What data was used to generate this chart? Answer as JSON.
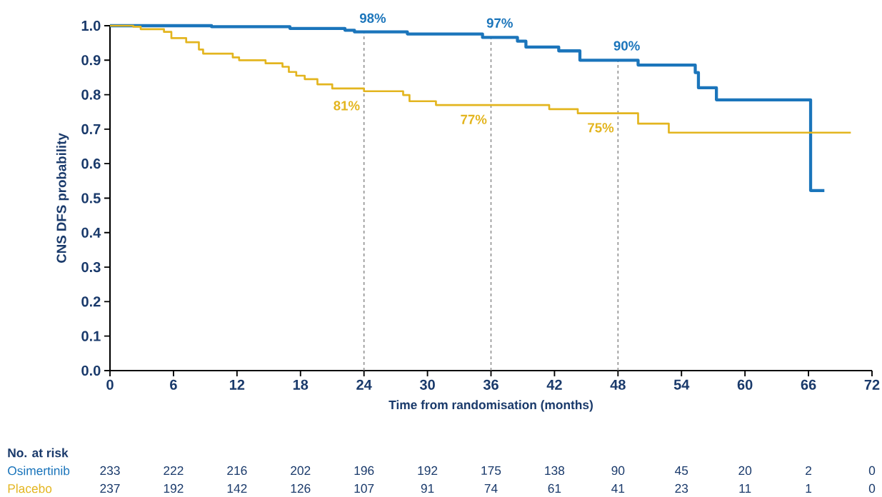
{
  "chart_data": {
    "type": "step",
    "ylabel": "CNS DFS probability",
    "xlabel": "Time from randomisation (months)",
    "xlim": [
      0,
      72
    ],
    "ylim": [
      0,
      1
    ],
    "xticks": [
      0,
      6,
      12,
      18,
      24,
      30,
      36,
      42,
      48,
      54,
      60,
      66,
      72
    ],
    "yticks": [
      {
        "value": 0,
        "label": "0.0"
      },
      {
        "value": 0.1,
        "label": "0.1"
      },
      {
        "value": 0.2,
        "label": "0.2"
      },
      {
        "value": 0.3,
        "label": "0.3"
      },
      {
        "value": 0.4,
        "label": "0.4"
      },
      {
        "value": 0.5,
        "label": "0.5"
      },
      {
        "value": 0.6,
        "label": "0.6"
      },
      {
        "value": 0.7,
        "label": "0.7"
      },
      {
        "value": 0.8,
        "label": "0.8"
      },
      {
        "value": 0.9,
        "label": "0.9"
      },
      {
        "value": 1,
        "label": "1.0"
      }
    ],
    "series": [
      {
        "name": "Osimertinib",
        "color": "#1b75bb",
        "x": [
          0,
          9.6,
          17.0,
          22.2,
          23.1,
          28.1,
          35.2,
          38.5,
          39.3,
          42.4,
          44.4,
          49.9,
          55.3,
          55.6,
          57.3,
          66.2,
          67.5
        ],
        "values": [
          1.0,
          0.997,
          0.992,
          0.987,
          0.982,
          0.976,
          0.966,
          0.955,
          0.938,
          0.927,
          0.9,
          0.886,
          0.864,
          0.82,
          0.785,
          0.522,
          0.522
        ]
      },
      {
        "name": "Placebo",
        "color": "#e3b51f",
        "x": [
          0,
          2.2,
          2.9,
          5.1,
          5.8,
          7.2,
          8.4,
          8.8,
          11.6,
          12.2,
          14.7,
          16.3,
          16.9,
          17.6,
          18.4,
          19.6,
          21.0,
          24.0,
          27.7,
          28.3,
          30.8,
          41.5,
          44.2,
          49.9,
          52.8,
          70.0
        ],
        "values": [
          1.0,
          0.997,
          0.99,
          0.982,
          0.964,
          0.952,
          0.931,
          0.919,
          0.908,
          0.9,
          0.891,
          0.881,
          0.866,
          0.855,
          0.845,
          0.83,
          0.818,
          0.81,
          0.799,
          0.781,
          0.77,
          0.758,
          0.746,
          0.716,
          0.69,
          0.69
        ]
      }
    ],
    "ref_lines": [
      {
        "axis": "x",
        "value": 24,
        "color": "#808080",
        "line_style": "dashed"
      },
      {
        "axis": "x",
        "value": 36,
        "color": "#808080",
        "line_style": "dashed"
      },
      {
        "axis": "x",
        "value": 48,
        "color": "#808080",
        "line_style": "dashed"
      }
    ],
    "annotations": [
      {
        "text": "98%",
        "x": 24,
        "y": 0.98
      },
      {
        "text": "97%",
        "x": 36,
        "y": 0.966
      },
      {
        "text": "90%",
        "x": 48,
        "y": 0.9
      },
      {
        "text": "81%",
        "x": 24,
        "y": 0.81
      },
      {
        "text": "77%",
        "x": 36,
        "y": 0.77
      },
      {
        "text": "75%",
        "x": 48,
        "y": 0.746
      },
      "No. at risk",
      "233",
      "222",
      "216",
      "202",
      "196",
      "192",
      "175",
      "138",
      "90",
      "45",
      "20",
      "2",
      "0",
      "237",
      "192",
      "142",
      "126",
      "107",
      "91",
      "74",
      "61",
      "41",
      "23",
      "11",
      "1",
      "0"
    ]
  }
}
